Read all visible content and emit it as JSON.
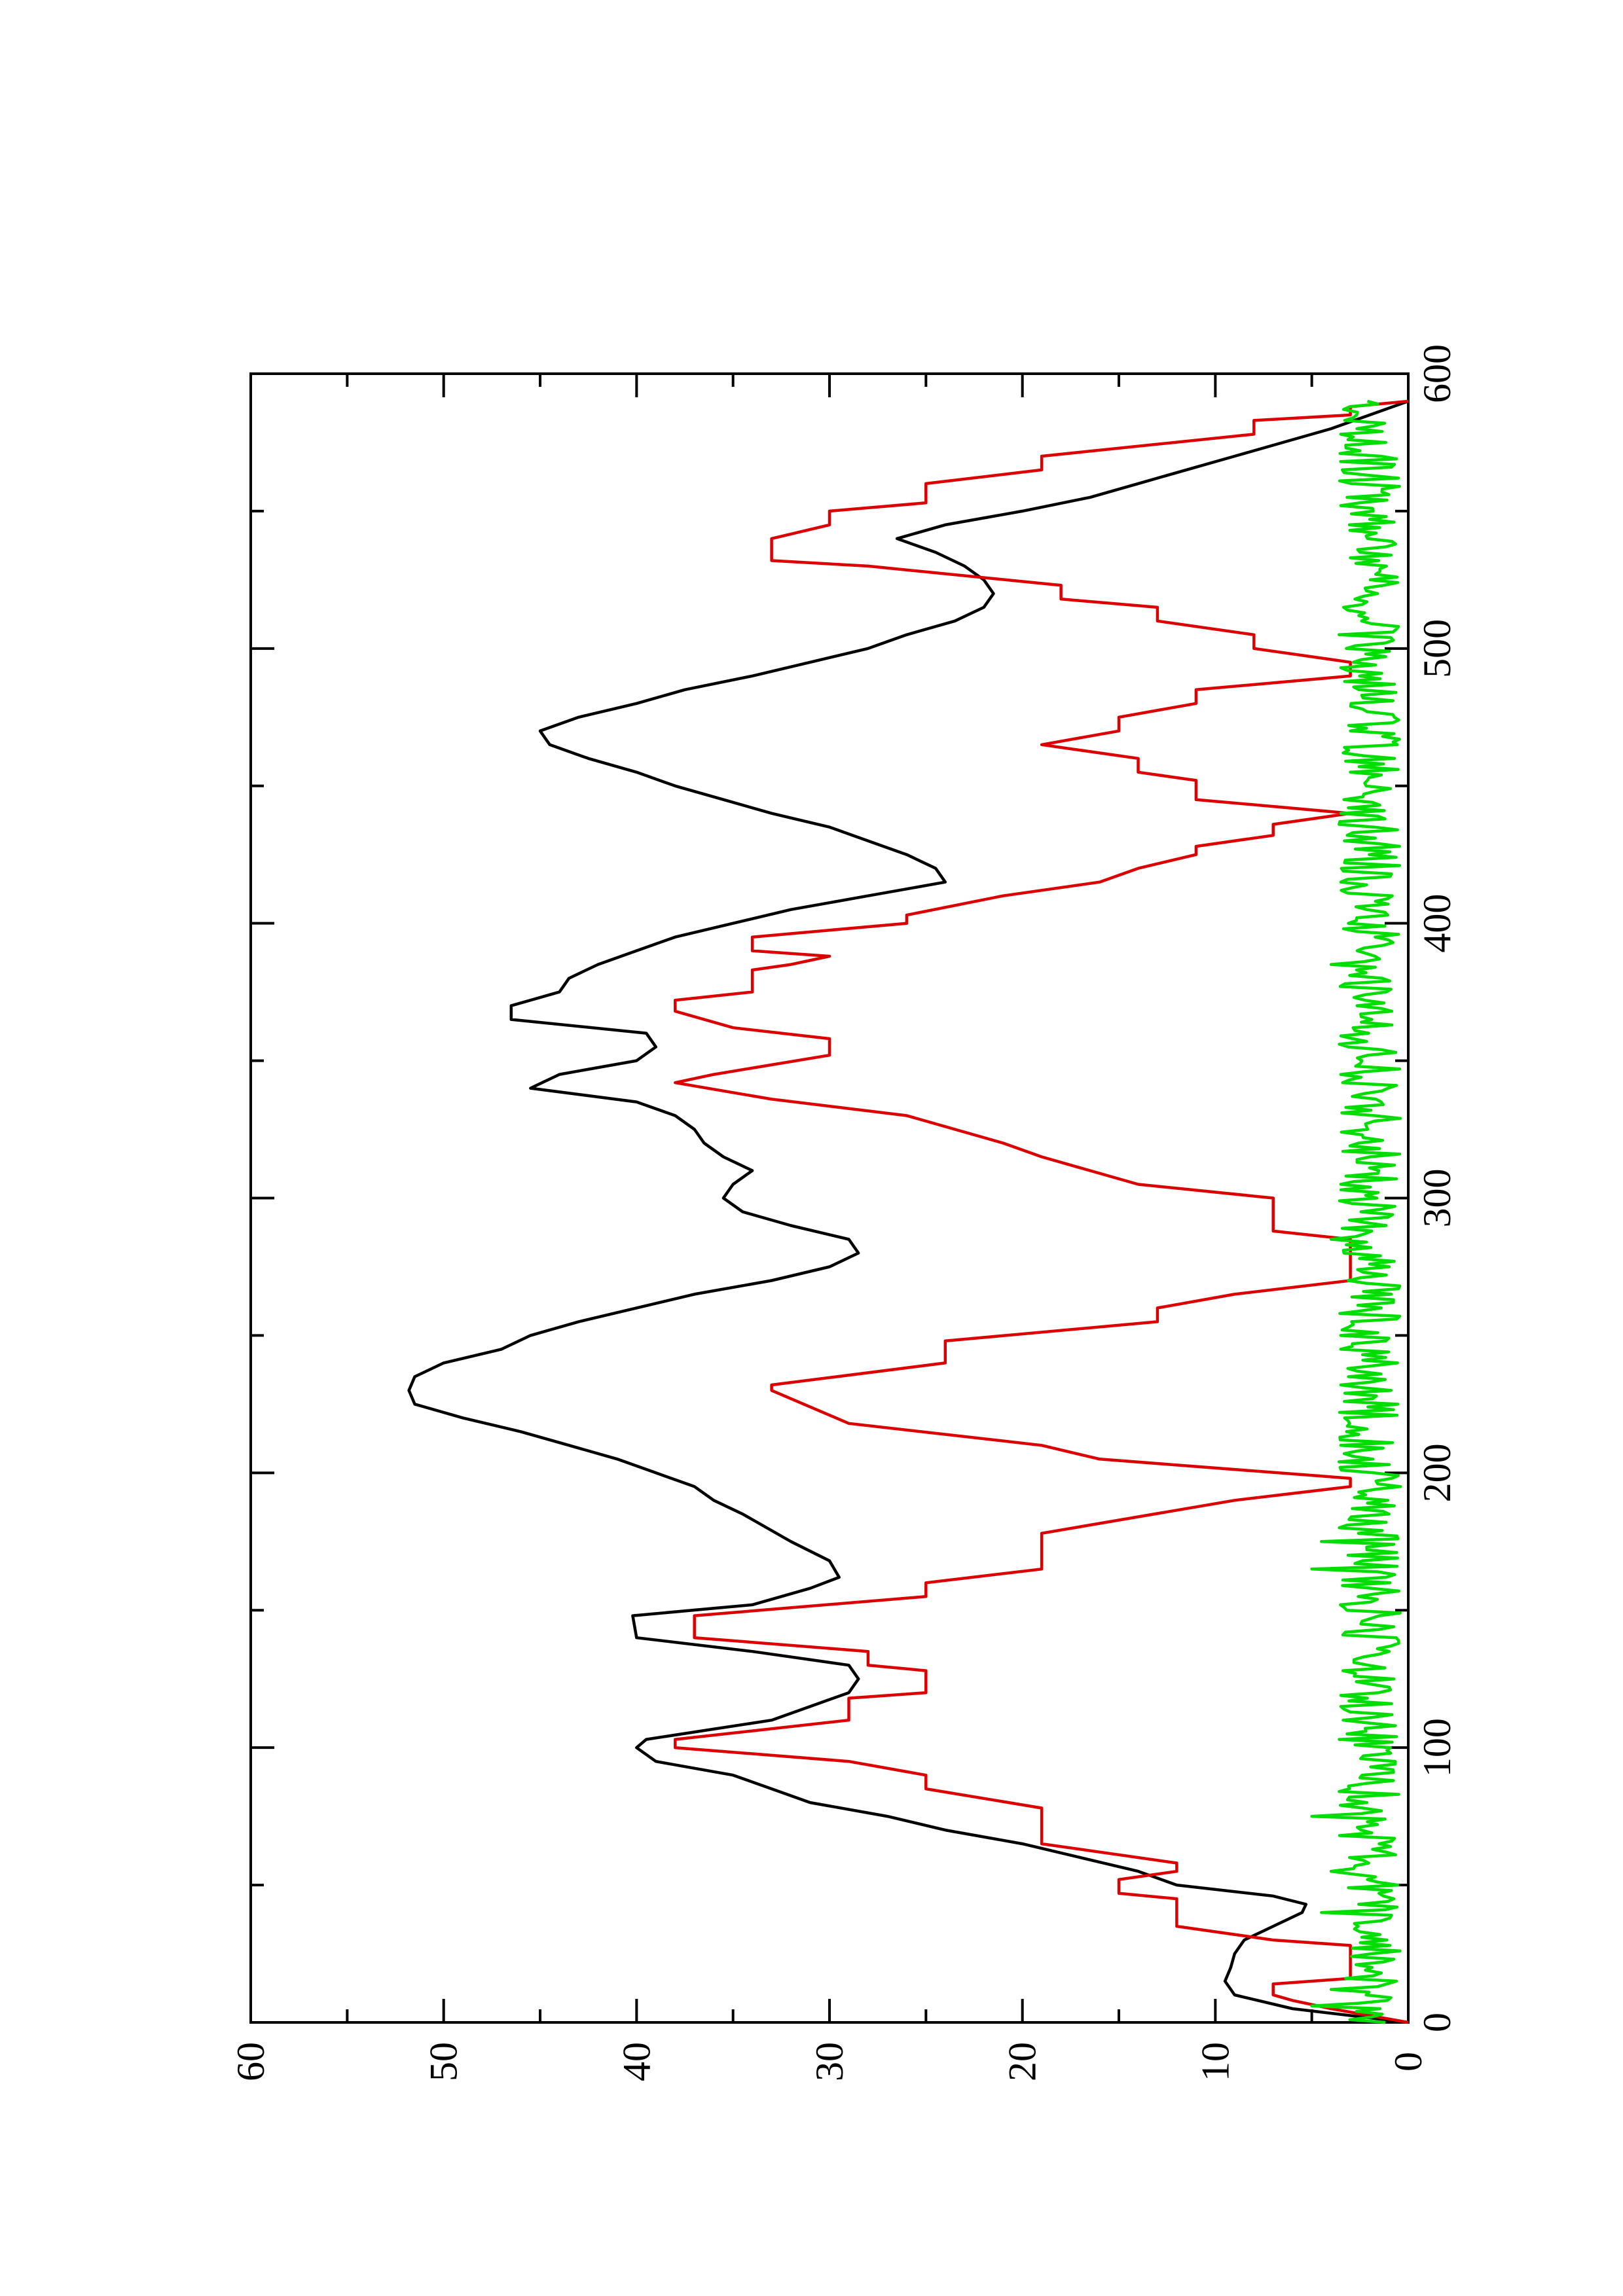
{
  "chart_data": {
    "type": "line",
    "orientation": "rotated-90-ccw",
    "title": "",
    "xlabel": "",
    "ylabel": "",
    "xlim": [
      0,
      600
    ],
    "ylim": [
      0,
      60
    ],
    "x_ticks": [
      "0",
      "100",
      "200",
      "300",
      "400",
      "500",
      "600"
    ],
    "y_ticks": [
      "0",
      "10",
      "20",
      "30",
      "40",
      "50",
      "60"
    ],
    "grid": false,
    "legend": "none",
    "series": [
      {
        "color": "#000000",
        "style": "smooth-line",
        "points": [
          [
            0,
            0
          ],
          [
            5,
            6
          ],
          [
            10,
            9
          ],
          [
            15,
            9.5
          ],
          [
            20,
            9.2
          ],
          [
            25,
            9
          ],
          [
            30,
            8.5
          ],
          [
            35,
            7
          ],
          [
            40,
            5.5
          ],
          [
            43,
            5.3
          ],
          [
            46,
            7
          ],
          [
            50,
            12
          ],
          [
            55,
            14
          ],
          [
            60,
            17
          ],
          [
            65,
            20
          ],
          [
            70,
            24
          ],
          [
            75,
            27
          ],
          [
            80,
            31
          ],
          [
            85,
            33
          ],
          [
            90,
            35
          ],
          [
            95,
            39
          ],
          [
            100,
            40
          ],
          [
            103,
            39.5
          ],
          [
            110,
            33
          ],
          [
            115,
            31
          ],
          [
            120,
            29
          ],
          [
            125,
            28.5
          ],
          [
            130,
            29
          ],
          [
            135,
            34
          ],
          [
            140,
            40
          ],
          [
            148,
            40.2
          ],
          [
            152,
            34
          ],
          [
            158,
            31
          ],
          [
            162,
            29.5
          ],
          [
            168,
            30
          ],
          [
            175,
            32
          ],
          [
            185,
            34.5
          ],
          [
            190,
            36
          ],
          [
            195,
            37
          ],
          [
            200,
            39
          ],
          [
            205,
            41
          ],
          [
            210,
            43.5
          ],
          [
            215,
            46
          ],
          [
            220,
            49
          ],
          [
            225,
            51.5
          ],
          [
            230,
            51.8
          ],
          [
            235,
            51.5
          ],
          [
            240,
            50
          ],
          [
            245,
            47
          ],
          [
            250,
            45.5
          ],
          [
            255,
            43
          ],
          [
            260,
            40
          ],
          [
            265,
            37
          ],
          [
            270,
            33
          ],
          [
            275,
            30
          ],
          [
            280,
            28.5
          ],
          [
            285,
            29
          ],
          [
            290,
            32
          ],
          [
            295,
            34.5
          ],
          [
            300,
            35.5
          ],
          [
            305,
            35
          ],
          [
            310,
            34
          ],
          [
            315,
            35.5
          ],
          [
            320,
            36.5
          ],
          [
            325,
            37
          ],
          [
            330,
            38
          ],
          [
            335,
            40
          ],
          [
            340,
            45.5
          ],
          [
            345,
            44
          ],
          [
            350,
            40
          ],
          [
            355,
            39
          ],
          [
            360,
            39.5
          ],
          [
            365,
            46.5
          ],
          [
            370,
            46.5
          ],
          [
            375,
            44
          ],
          [
            380,
            43.5
          ],
          [
            385,
            42
          ],
          [
            390,
            40
          ],
          [
            395,
            38
          ],
          [
            400,
            35
          ],
          [
            405,
            32
          ],
          [
            410,
            28
          ],
          [
            415,
            24
          ],
          [
            420,
            24.5
          ],
          [
            425,
            26
          ],
          [
            430,
            28
          ],
          [
            435,
            30
          ],
          [
            440,
            33
          ],
          [
            445,
            35.5
          ],
          [
            450,
            38
          ],
          [
            455,
            40
          ],
          [
            460,
            42.5
          ],
          [
            465,
            44.5
          ],
          [
            470,
            45
          ],
          [
            475,
            43
          ],
          [
            480,
            40
          ],
          [
            485,
            37.5
          ],
          [
            490,
            34
          ],
          [
            495,
            31
          ],
          [
            500,
            28
          ],
          [
            505,
            26
          ],
          [
            510,
            23.5
          ],
          [
            515,
            22
          ],
          [
            520,
            21.5
          ],
          [
            525,
            22
          ],
          [
            530,
            23
          ],
          [
            535,
            24.5
          ],
          [
            540,
            26.5
          ],
          [
            545,
            24
          ],
          [
            550,
            20
          ],
          [
            555,
            16.5
          ],
          [
            560,
            14
          ],
          [
            565,
            11.5
          ],
          [
            570,
            9
          ],
          [
            575,
            6.5
          ],
          [
            580,
            4
          ],
          [
            585,
            2
          ],
          [
            590,
            0
          ]
        ]
      },
      {
        "color": "#dd0000",
        "style": "stepped-line",
        "points": [
          [
            0,
            0
          ],
          [
            5,
            4
          ],
          [
            8,
            6
          ],
          [
            10,
            7
          ],
          [
            14,
            7
          ],
          [
            16,
            3
          ],
          [
            28,
            3
          ],
          [
            30,
            7
          ],
          [
            35,
            12
          ],
          [
            45,
            12
          ],
          [
            47,
            15
          ],
          [
            52,
            15
          ],
          [
            55,
            12
          ],
          [
            58,
            12
          ],
          [
            65,
            19
          ],
          [
            78,
            19
          ],
          [
            85,
            25
          ],
          [
            90,
            25
          ],
          [
            95,
            29
          ],
          [
            100,
            38
          ],
          [
            103,
            38
          ],
          [
            110,
            29
          ],
          [
            118,
            29
          ],
          [
            120,
            25
          ],
          [
            128,
            25
          ],
          [
            130,
            28
          ],
          [
            135,
            28
          ],
          [
            140,
            37
          ],
          [
            148,
            37
          ],
          [
            155,
            25
          ],
          [
            160,
            25
          ],
          [
            165,
            19
          ],
          [
            178,
            19
          ],
          [
            190,
            9
          ],
          [
            195,
            3
          ],
          [
            198,
            3
          ],
          [
            205,
            16
          ],
          [
            210,
            19
          ],
          [
            218,
            29
          ],
          [
            230,
            33
          ],
          [
            232,
            33
          ],
          [
            240,
            24
          ],
          [
            248,
            24
          ],
          [
            255,
            13
          ],
          [
            260,
            13
          ],
          [
            265,
            9
          ],
          [
            270,
            3
          ],
          [
            285,
            3
          ],
          [
            288,
            7
          ],
          [
            300,
            7
          ],
          [
            305,
            14
          ],
          [
            315,
            19
          ],
          [
            320,
            21
          ],
          [
            330,
            26
          ],
          [
            336,
            33
          ],
          [
            342,
            38
          ],
          [
            345,
            36
          ],
          [
            352,
            30
          ],
          [
            358,
            30
          ],
          [
            362,
            35
          ],
          [
            368,
            38
          ],
          [
            372,
            38
          ],
          [
            375,
            34
          ],
          [
            383,
            34
          ],
          [
            385,
            32
          ],
          [
            388,
            30
          ],
          [
            390,
            34
          ],
          [
            395,
            34
          ],
          [
            400,
            26
          ],
          [
            403,
            26
          ],
          [
            410,
            21
          ],
          [
            415,
            16
          ],
          [
            420,
            14
          ],
          [
            425,
            11
          ],
          [
            428,
            11
          ],
          [
            432,
            7
          ],
          [
            436,
            7
          ],
          [
            440,
            3
          ],
          [
            445,
            11
          ],
          [
            452,
            11
          ],
          [
            455,
            14
          ],
          [
            460,
            14
          ],
          [
            465,
            19
          ],
          [
            470,
            15
          ],
          [
            475,
            15
          ],
          [
            480,
            11
          ],
          [
            485,
            11
          ],
          [
            490,
            3
          ],
          [
            495,
            3
          ],
          [
            500,
            8
          ],
          [
            505,
            8
          ],
          [
            510,
            13
          ],
          [
            515,
            13
          ],
          [
            518,
            18
          ],
          [
            523,
            18
          ],
          [
            530,
            28
          ],
          [
            532,
            33
          ],
          [
            540,
            33
          ],
          [
            545,
            30
          ],
          [
            550,
            30
          ],
          [
            553,
            25
          ],
          [
            560,
            25
          ],
          [
            565,
            19
          ],
          [
            570,
            19
          ],
          [
            578,
            8
          ],
          [
            583,
            8
          ],
          [
            585,
            3
          ],
          [
            588,
            3
          ],
          [
            590,
            0
          ]
        ]
      },
      {
        "color": "#00dd00",
        "style": "noisy-line",
        "description_values": "fluctuates between roughly 0.5 and 4 across the full x range",
        "seed": 17,
        "x_start": 0,
        "x_end": 590,
        "x_step": 1,
        "mean": 2,
        "amplitude": 1.6,
        "spikes": [
          [
            6,
            5
          ],
          [
            12,
            4
          ],
          [
            40,
            4.5
          ],
          [
            55,
            4
          ],
          [
            75,
            5
          ],
          [
            115,
            3.5
          ],
          [
            165,
            5
          ],
          [
            175,
            4.5
          ],
          [
            210,
            3.5
          ],
          [
            250,
            3.5
          ],
          [
            285,
            4
          ],
          [
            305,
            3.5
          ],
          [
            345,
            3.5
          ],
          [
            385,
            4
          ],
          [
            415,
            3.5
          ],
          [
            440,
            3.5
          ],
          [
            455,
            3
          ],
          [
            470,
            3
          ],
          [
            535,
            2.5
          ],
          [
            552,
            3.5
          ],
          [
            578,
            3.5
          ]
        ]
      }
    ]
  }
}
